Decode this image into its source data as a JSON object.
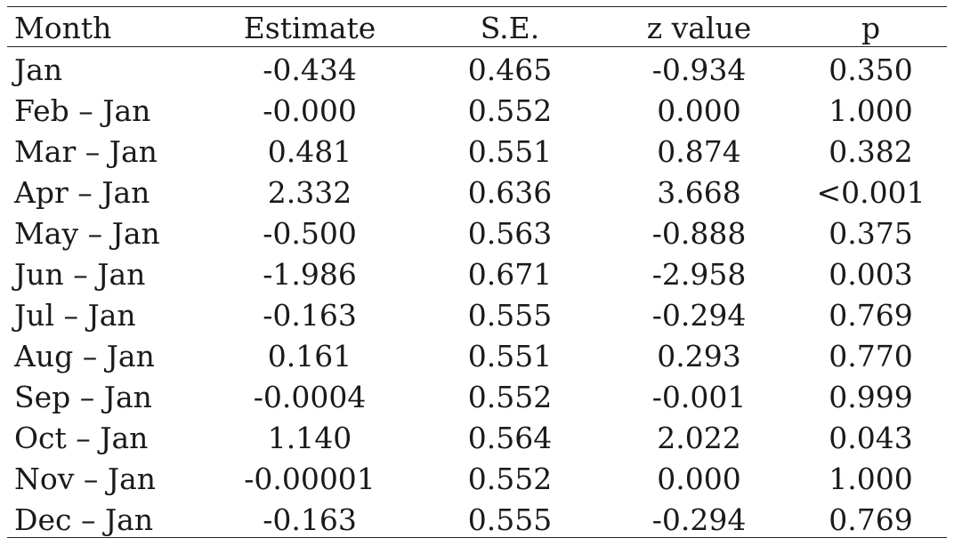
{
  "table": {
    "headers": [
      "Month",
      "Estimate",
      "S.E.",
      "z value",
      "p"
    ],
    "rows": [
      [
        "Jan",
        "-0.434",
        "0.465",
        "-0.934",
        "0.350"
      ],
      [
        "Feb – Jan",
        "-0.000",
        "0.552",
        "0.000",
        "1.000"
      ],
      [
        "Mar – Jan",
        "0.481",
        "0.551",
        "0.874",
        "0.382"
      ],
      [
        "Apr – Jan",
        "2.332",
        "0.636",
        "3.668",
        "<0.001"
      ],
      [
        "May – Jan",
        "-0.500",
        "0.563",
        "-0.888",
        "0.375"
      ],
      [
        "Jun – Jan",
        "-1.986",
        "0.671",
        "-2.958",
        "0.003"
      ],
      [
        "Jul – Jan",
        "-0.163",
        "0.555",
        "-0.294",
        "0.769"
      ],
      [
        "Aug – Jan",
        "0.161",
        "0.551",
        "0.293",
        "0.770"
      ],
      [
        "Sep – Jan",
        "-0.0004",
        "0.552",
        "-0.001",
        "0.999"
      ],
      [
        "Oct – Jan",
        "1.140",
        "0.564",
        "2.022",
        "0.043"
      ],
      [
        "Nov – Jan",
        "-0.00001",
        "0.552",
        "0.000",
        "1.000"
      ],
      [
        "Dec – Jan",
        "-0.163",
        "0.555",
        "-0.294",
        "0.769"
      ]
    ]
  }
}
